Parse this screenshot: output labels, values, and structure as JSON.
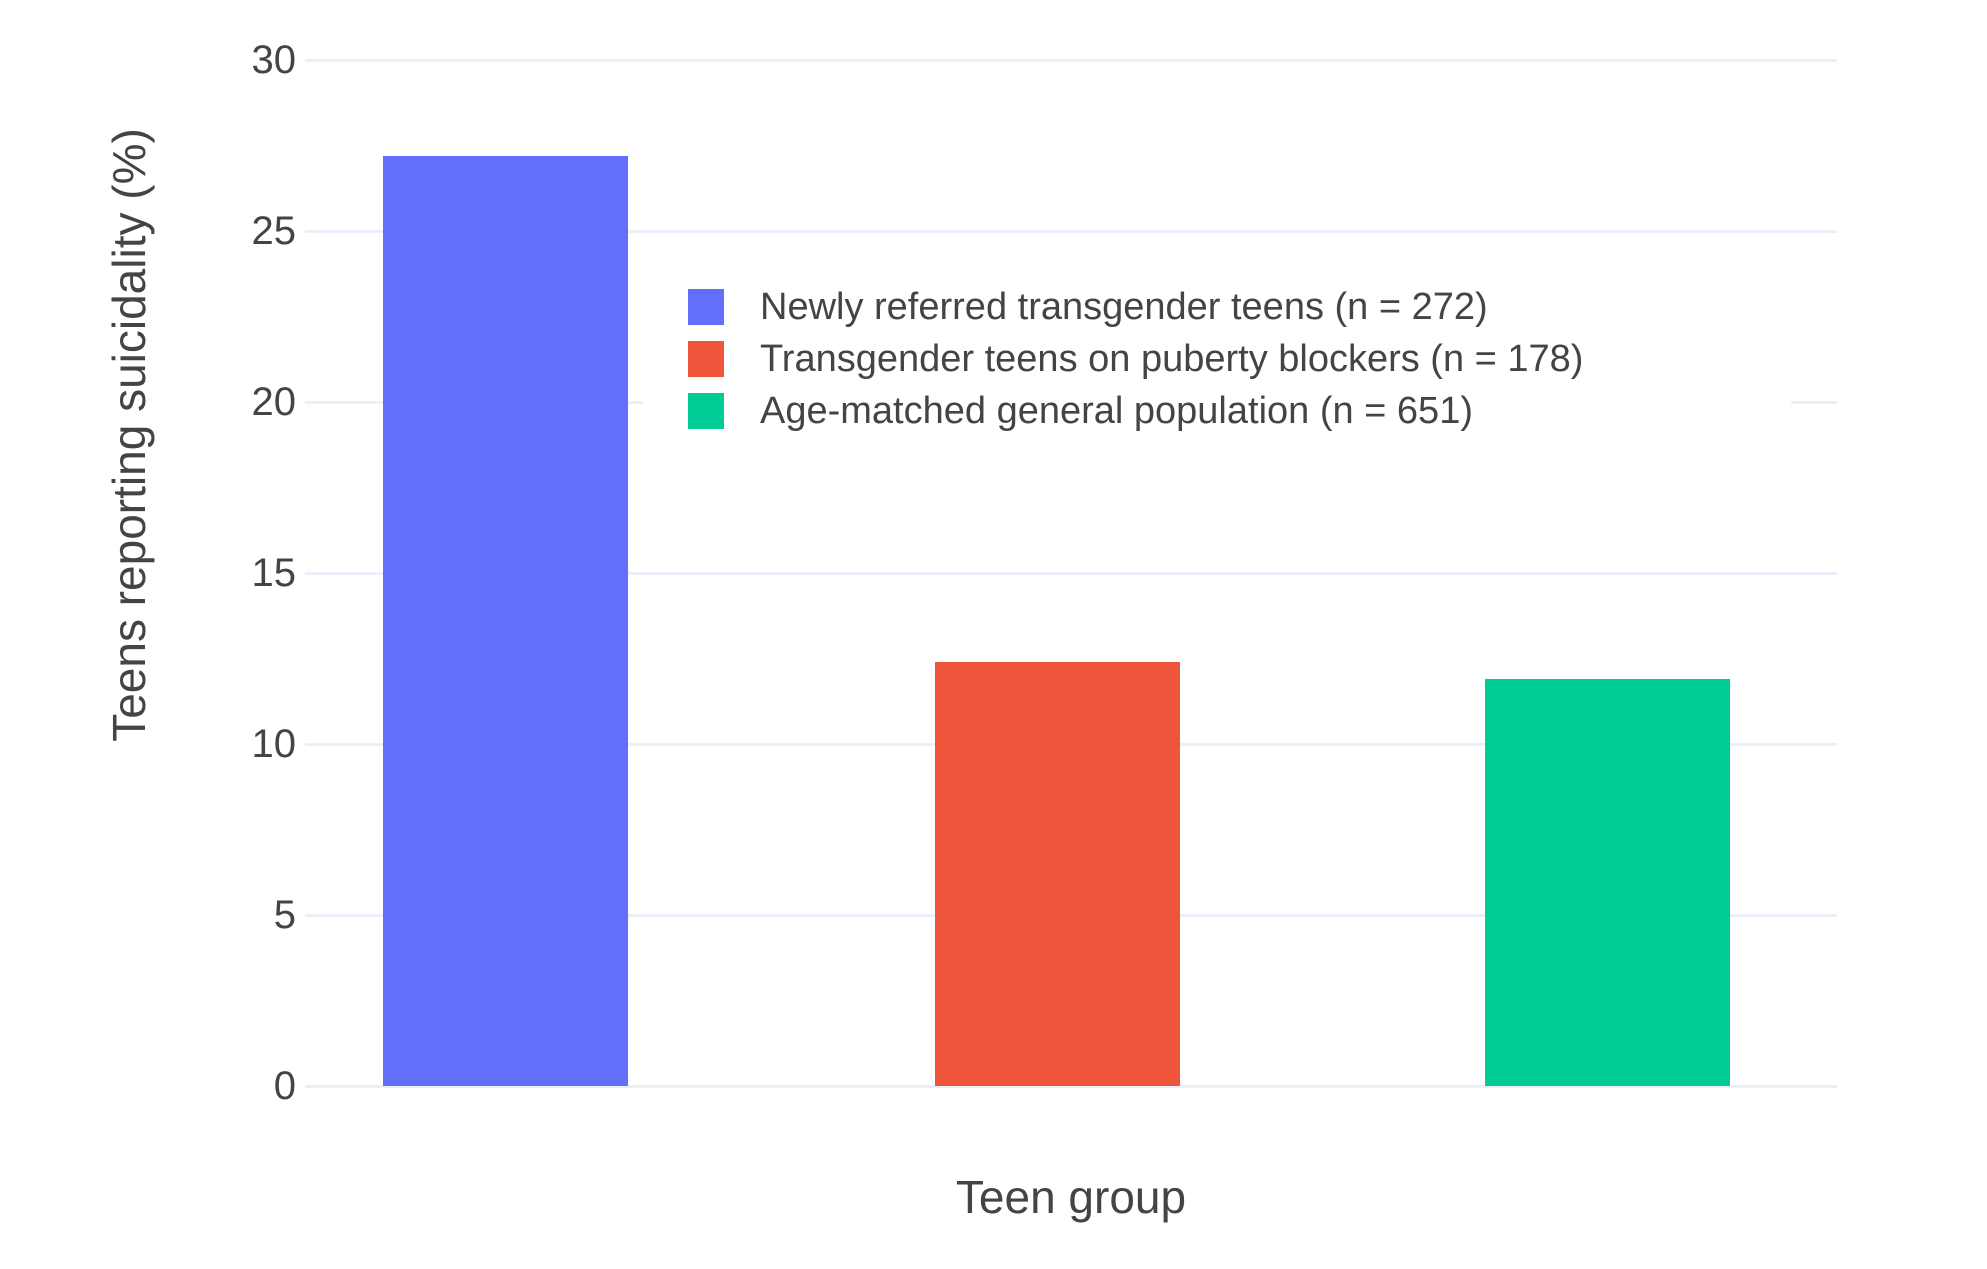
{
  "page": {
    "background_color": "#ffffff",
    "text_color": "#444444"
  },
  "chart_data": {
    "type": "bar",
    "title": "",
    "xlabel": "Teen group",
    "ylabel": "Teens reporting suicidality (%)",
    "categories": [
      "Newly referred transgender teens (n = 272)",
      "Transgender teens on puberty blockers (n = 178)",
      "Age-matched general population (n = 651)"
    ],
    "values": [
      27.2,
      12.4,
      11.9
    ],
    "colors": [
      "#636EFA",
      "#EF553B",
      "#00CC96"
    ],
    "ylim": [
      0,
      30
    ],
    "yticks": [
      0,
      5,
      10,
      15,
      20,
      25,
      30
    ],
    "xticklabels_shown": false,
    "grid": true,
    "gridcolor": "#EBF0F8",
    "legend_position": "inside-top-center",
    "legend": [
      {
        "label": "Newly referred transgender teens (n = 272)",
        "color": "#636EFA"
      },
      {
        "label": "Transgender teens on puberty blockers (n = 178)",
        "color": "#EF553B"
      },
      {
        "label": "Age-matched general population (n = 651)",
        "color": "#00CC96"
      }
    ]
  }
}
